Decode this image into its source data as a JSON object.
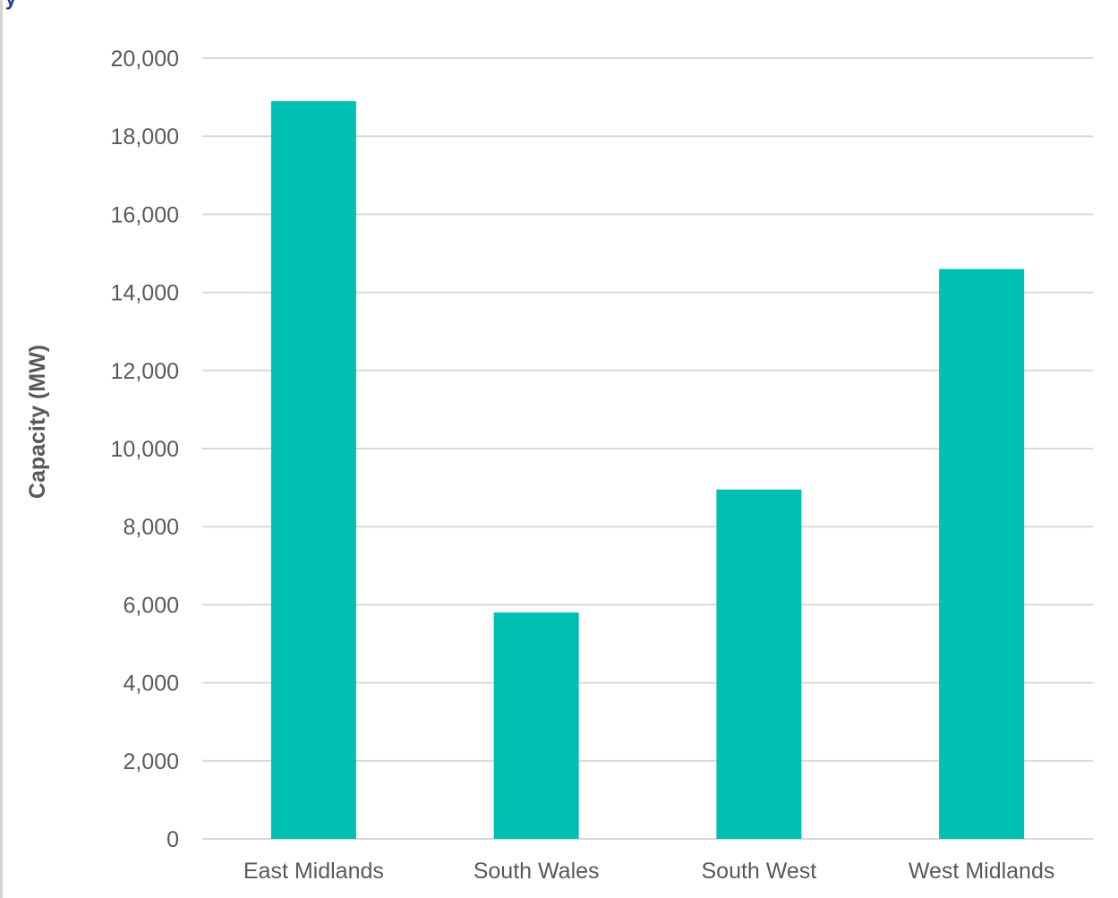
{
  "chart_data": {
    "type": "bar",
    "categories": [
      "East Midlands",
      "South Wales",
      "South West",
      "West Midlands"
    ],
    "values": [
      18900,
      5800,
      8950,
      14600
    ],
    "title": "",
    "xlabel": "",
    "ylabel": "Capacity (MW)",
    "ylim": [
      0,
      20000
    ],
    "yticks": [
      0,
      2000,
      4000,
      6000,
      8000,
      10000,
      12000,
      14000,
      16000,
      18000,
      20000
    ],
    "ytick_labels": [
      "0",
      "2,000",
      "4,000",
      "6,000",
      "8,000",
      "10,000",
      "12,000",
      "14,000",
      "16,000",
      "18,000",
      "20,000"
    ],
    "bar_color": "#00bfb3",
    "gridline_color": "#d9d9d9",
    "grid": true,
    "legend": "none"
  },
  "header": {
    "fragment": "y"
  }
}
